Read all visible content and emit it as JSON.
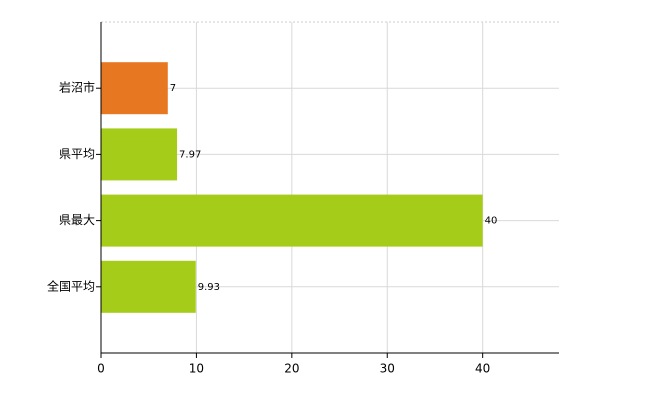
{
  "chart_data": {
    "type": "bar",
    "orientation": "horizontal",
    "categories": [
      "岩沼市",
      "県平均",
      "県最大",
      "全国平均"
    ],
    "values": [
      7,
      7.97,
      40,
      9.93
    ],
    "colors": [
      "#e87722",
      "#a4cc18",
      "#a4cc18",
      "#a4cc18"
    ],
    "xlim": [
      0,
      48
    ],
    "xticks": [
      0,
      10,
      20,
      30,
      40
    ],
    "grid": true
  }
}
